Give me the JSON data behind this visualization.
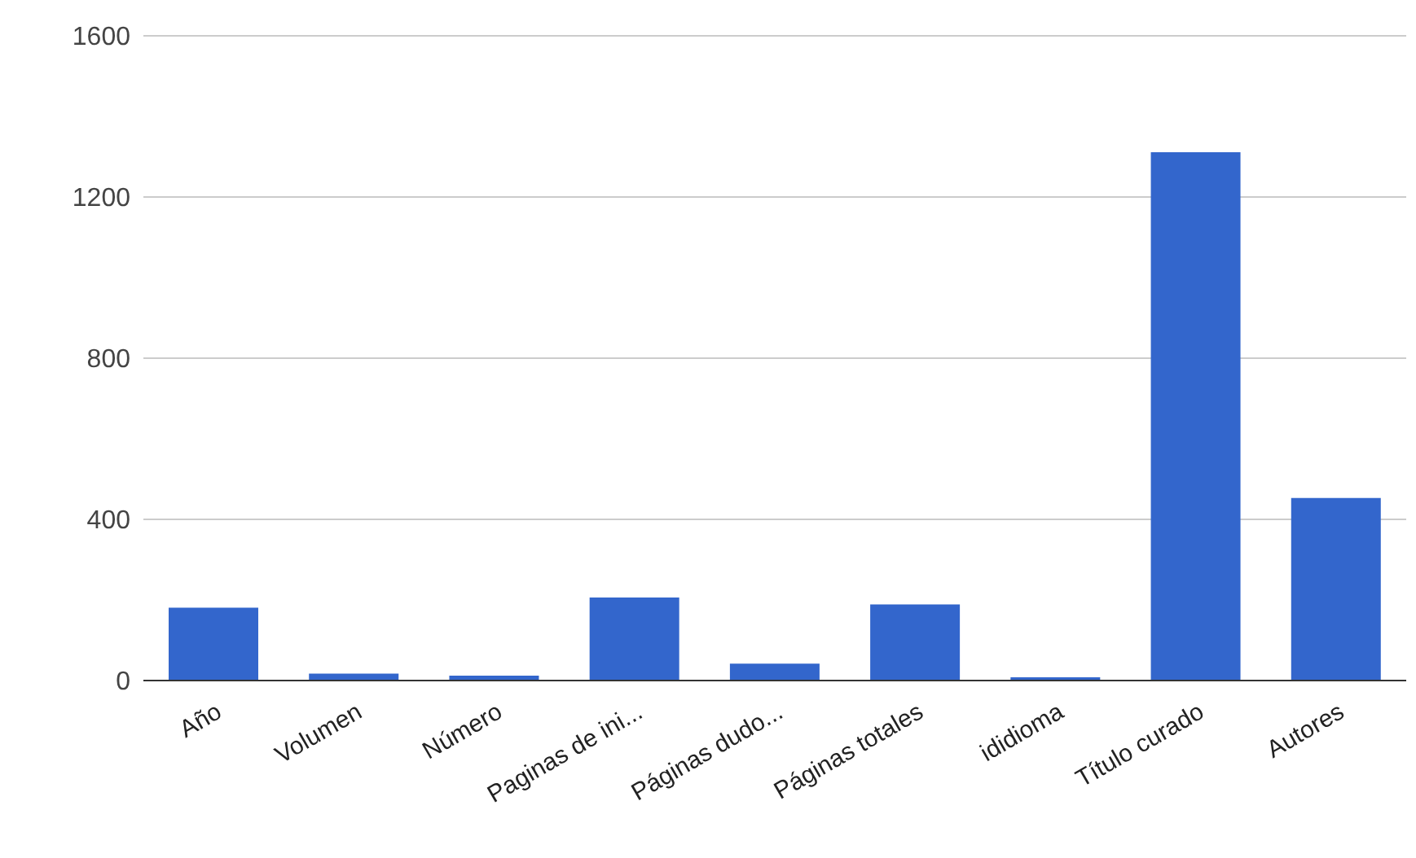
{
  "chart_data": {
    "type": "bar",
    "categories": [
      "Año",
      "Volumen",
      "Número",
      "Paginas de ini...",
      "Páginas dudo...",
      "Páginas totales",
      "ididioma",
      "Título curado",
      "Autores"
    ],
    "values": [
      181,
      17,
      12,
      206,
      42,
      189,
      8,
      1311,
      453
    ],
    "color": "#3366cc",
    "ylim": [
      0,
      1600
    ],
    "yticks": [
      0,
      400,
      800,
      1200,
      1600
    ],
    "grid": "y",
    "legend": false
  }
}
